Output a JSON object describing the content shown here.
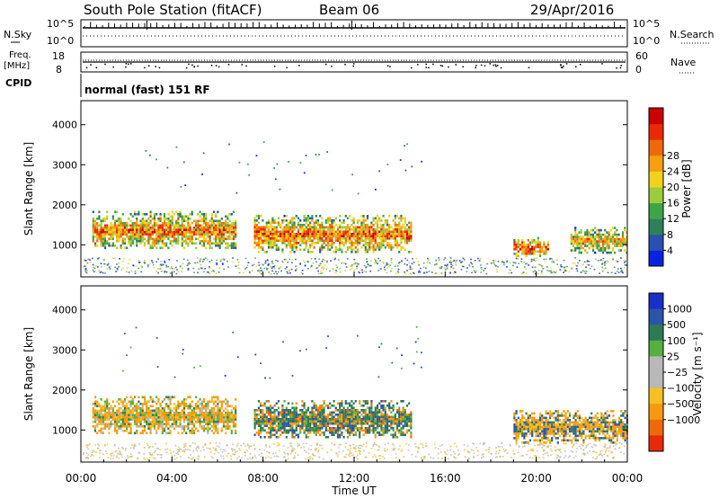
{
  "header": {
    "station": "South Pole Station (fitACF)",
    "beam": "Beam 06",
    "date": "29/Apr/2016"
  },
  "top_panels": {
    "nsky_label": "N.Sky",
    "nsky_ticks": [
      "10^5",
      "10^0"
    ],
    "nsearch_label": "N.Search",
    "nsearch_ticks": [
      "10^5",
      "10^0"
    ],
    "freq_label": "Freq.",
    "freq_unit": "[MHz]",
    "freq_ticks": [
      "18",
      "8"
    ],
    "nave_label": "Nave",
    "nave_ticks": [
      "60",
      "0"
    ],
    "cpid_label": "CPID",
    "cpid_value": "normal (fast) 151 RF"
  },
  "chart_data": [
    {
      "type": "heatmap",
      "name": "power",
      "ylabel": "Slant Range [km]",
      "ylim": [
        200,
        4600
      ],
      "y_ticks": [
        "1000",
        "2000",
        "3000",
        "4000"
      ],
      "colorbar_label": "Power [dB]",
      "colorbar_ticks": [
        "4",
        "8",
        "12",
        "16",
        "20",
        "24",
        "28"
      ],
      "colorbar_colors": [
        "#0a22e0",
        "#2a4fb0",
        "#2f7f5a",
        "#3fa34a",
        "#9ccc3c",
        "#f2d21a",
        "#f5a010",
        "#ee6a08",
        "#e82a0a",
        "#cc0000"
      ],
      "regions": [
        {
          "x0": 0.5,
          "x1": 6.8,
          "y0": 900,
          "y1": 1850,
          "level": 0.75
        },
        {
          "x0": 7.6,
          "x1": 14.5,
          "y0": 800,
          "y1": 1750,
          "level": 0.8
        },
        {
          "x0": 19.0,
          "x1": 20.5,
          "y0": 700,
          "y1": 1200,
          "level": 0.9
        },
        {
          "x0": 21.5,
          "x1": 24.0,
          "y0": 800,
          "y1": 1450,
          "level": 0.65
        }
      ]
    },
    {
      "type": "heatmap",
      "name": "velocity",
      "ylabel": "Slant Range [km]",
      "xlabel": "Time UT",
      "ylim": [
        200,
        4600
      ],
      "y_ticks": [
        "1000",
        "2000",
        "3000",
        "4000"
      ],
      "x_ticks": [
        "00:00",
        "04:00",
        "08:00",
        "12:00",
        "16:00",
        "20:00",
        "00:00"
      ],
      "colorbar_label": "Velocity [m s⁻¹]",
      "colorbar_ticks": [
        "1000",
        "500",
        "100",
        "25",
        "−25",
        "−100",
        "−500",
        "−1000"
      ],
      "colorbar_colors": [
        "#1a2ec8",
        "#2a55a8",
        "#2f7a55",
        "#55b040",
        "#b8b8b8",
        "#b8b8b8",
        "#f5c020",
        "#f59a10",
        "#ee6a08",
        "#e82a0a"
      ],
      "regions": [
        {
          "x0": 0.5,
          "x1": 6.8,
          "y0": 900,
          "y1": 1850,
          "level": "orange-green"
        },
        {
          "x0": 7.6,
          "x1": 14.5,
          "y0": 800,
          "y1": 1750,
          "level": "green-blue"
        },
        {
          "x0": 19.0,
          "x1": 24.0,
          "y0": 700,
          "y1": 1500,
          "level": "orange-blue"
        }
      ]
    }
  ]
}
